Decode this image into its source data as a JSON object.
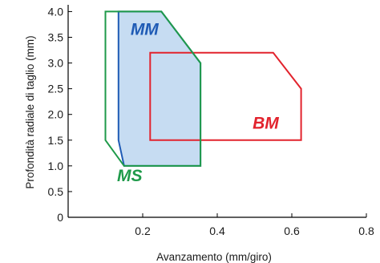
{
  "chart_data": {
    "type": "area",
    "title": "",
    "xlabel": "Avanzamento (mm/giro)",
    "ylabel": "Profondità radiale di taglio (mm)",
    "xlim": [
      0,
      0.8
    ],
    "ylim": [
      0,
      4.1
    ],
    "x_ticks": [
      0.2,
      0.4,
      0.6,
      0.8
    ],
    "x_tick_labels": [
      "0.2",
      "0.4",
      "0.6",
      "0.8"
    ],
    "y_ticks": [
      0,
      0.5,
      1.0,
      1.5,
      2.0,
      2.5,
      3.0,
      3.5,
      4.0
    ],
    "y_tick_labels": [
      "0",
      "0.5",
      "1.0",
      "1.5",
      "2.0",
      "2.5",
      "3.0",
      "3.5",
      "4.0"
    ],
    "grid": false,
    "legend": "none",
    "regions": [
      {
        "name": "MS",
        "color": "#1f9a4a",
        "fill": "none",
        "label_at": [
          0.165,
          0.7
        ],
        "points": [
          [
            0.1,
            4.0
          ],
          [
            0.25,
            4.0
          ],
          [
            0.355,
            3.0
          ],
          [
            0.355,
            1.0
          ],
          [
            0.15,
            1.0
          ],
          [
            0.1,
            1.5
          ]
        ]
      },
      {
        "name": "MM",
        "color": "#1f5bb5",
        "fill": "#c6dcf2",
        "label_at": [
          0.205,
          3.55
        ],
        "points": [
          [
            0.135,
            4.0
          ],
          [
            0.25,
            4.0
          ],
          [
            0.355,
            3.0
          ],
          [
            0.355,
            1.0
          ],
          [
            0.15,
            1.0
          ],
          [
            0.135,
            1.5
          ]
        ]
      },
      {
        "name": "BM",
        "color": "#e2232d",
        "fill": "none",
        "label_at": [
          0.53,
          1.72
        ],
        "points": [
          [
            0.22,
            3.2
          ],
          [
            0.55,
            3.2
          ],
          [
            0.625,
            2.5
          ],
          [
            0.625,
            1.5
          ],
          [
            0.22,
            1.5
          ]
        ]
      }
    ]
  }
}
